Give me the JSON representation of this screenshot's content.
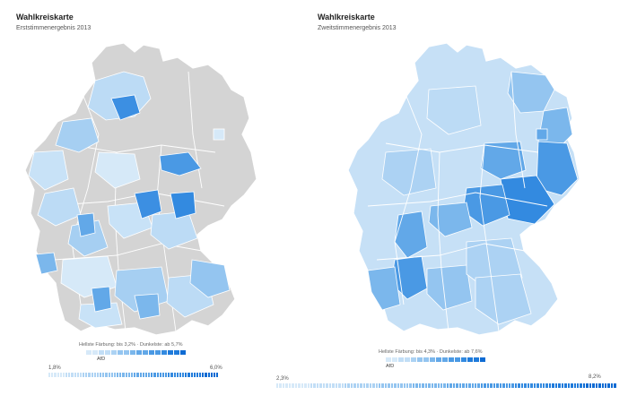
{
  "left": {
    "title": "Wahlkreiskarte",
    "subtitle": "Erststimmenergebnis 2013",
    "legend_text": "Hellste Färbung: bis 3,2% · Dunkelste: ab 5,7%",
    "party": "AfD",
    "range_min": "1,8%",
    "range_max": "6,0%",
    "colors": [
      "#d6e9f8",
      "#c2def6",
      "#acd2f3",
      "#94c5f0",
      "#7bb7ec",
      "#62a8e8",
      "#4a99e4",
      "#338ae0",
      "#1f7bdb",
      "#0f6bd3"
    ],
    "no_candidate_color": "#d4d4d4"
  },
  "right": {
    "title": "Wahlkreiskarte",
    "subtitle": "Zweitstimmenergebnis 2013",
    "legend_text": "Hellste Färbung: bis 4,3% · Dunkelste: ab 7,6%",
    "party": "AfD",
    "range_min": "2,3%",
    "range_max": "8,2%",
    "colors": [
      "#d6e9f8",
      "#c2def6",
      "#acd2f3",
      "#94c5f0",
      "#7bb7ec",
      "#62a8e8",
      "#4a99e4",
      "#338ae0",
      "#1f7bdb",
      "#0f6bd3"
    ]
  }
}
